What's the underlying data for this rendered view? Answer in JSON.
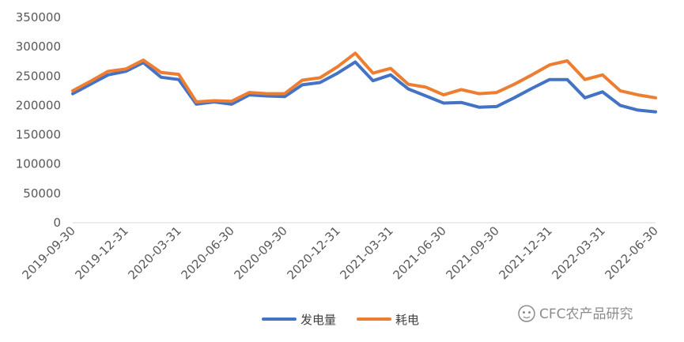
{
  "chart_data": {
    "type": "line",
    "x": [
      "2019-09-30",
      "2019-10-31",
      "2019-11-30",
      "2019-12-31",
      "2020-01-31",
      "2020-02-29",
      "2020-03-31",
      "2020-04-30",
      "2020-05-31",
      "2020-06-30",
      "2020-07-31",
      "2020-08-31",
      "2020-09-30",
      "2020-10-31",
      "2020-11-30",
      "2020-12-31",
      "2021-01-31",
      "2021-02-28",
      "2021-03-31",
      "2021-04-30",
      "2021-05-31",
      "2021-06-30",
      "2021-07-31",
      "2021-08-31",
      "2021-09-30",
      "2021-10-31",
      "2021-11-30",
      "2021-12-31",
      "2022-01-31",
      "2022-02-28",
      "2022-03-31",
      "2022-04-30",
      "2022-05-31",
      "2022-06-30"
    ],
    "x_tick_labels": [
      "2019-09-30",
      "2019-12-31",
      "2020-03-31",
      "2020-06-30",
      "2020-09-30",
      "2020-12-31",
      "2021-03-31",
      "2021-06-30",
      "2021-09-30",
      "2021-12-31",
      "2022-03-31",
      "2022-06-30"
    ],
    "y_tick_labels": [
      "0",
      "50000",
      "100000",
      "150000",
      "200000",
      "250000",
      "300000",
      "350000"
    ],
    "ylim": [
      0,
      350000
    ],
    "grid": false,
    "legend_position": "bottom",
    "series": [
      {
        "name": "发电量",
        "color": "#4472c4",
        "values": [
          220000,
          236000,
          252000,
          258000,
          273000,
          248000,
          244000,
          202000,
          206000,
          202000,
          218000,
          216000,
          215000,
          235000,
          239000,
          255000,
          274000,
          242000,
          252000,
          228000,
          216000,
          204000,
          205000,
          197000,
          198000,
          213000,
          229000,
          244000,
          244000,
          213000,
          223000,
          200000,
          192000,
          189000
        ]
      },
      {
        "name": "耗电",
        "color": "#ed7d31",
        "values": [
          225000,
          241000,
          258000,
          262000,
          277000,
          256000,
          253000,
          206000,
          208000,
          207000,
          222000,
          220000,
          220000,
          243000,
          247000,
          266000,
          289000,
          255000,
          263000,
          236000,
          231000,
          218000,
          227000,
          220000,
          222000,
          236000,
          252000,
          269000,
          276000,
          244000,
          252000,
          225000,
          218000,
          213000
        ]
      }
    ]
  },
  "watermark": {
    "text": "CFC农产品研究",
    "icon": "wechat-icon"
  }
}
